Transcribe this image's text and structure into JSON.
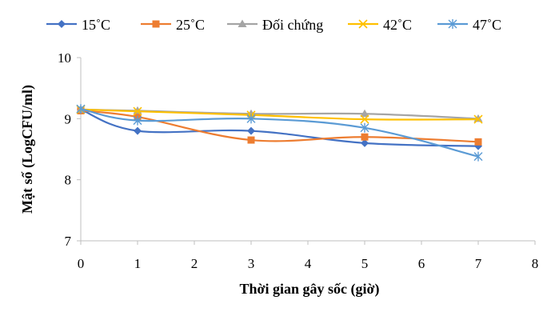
{
  "chart_data": {
    "type": "line",
    "title": "",
    "xlabel": "Thời gian gây sốc (giờ)",
    "ylabel": "Mật số (LogCFU/ml)",
    "xlim": [
      0,
      8
    ],
    "ylim": [
      7,
      10
    ],
    "xticks": [
      "0",
      "1",
      "2",
      "3",
      "4",
      "5",
      "6",
      "7",
      "8"
    ],
    "yticks": [
      "7",
      "8",
      "9",
      "10"
    ],
    "grid": false,
    "legend_position": "top",
    "x": [
      0,
      1,
      3,
      5,
      7
    ],
    "series": [
      {
        "name": "15˚C",
        "color": "#4472C4",
        "marker": "diamond",
        "values": [
          9.15,
          8.8,
          8.8,
          8.6,
          8.55
        ]
      },
      {
        "name": "25˚C",
        "color": "#ED7D31",
        "marker": "square",
        "values": [
          9.13,
          9.03,
          8.65,
          8.7,
          8.62
        ]
      },
      {
        "name": "Đối chứng",
        "color": "#A5A5A5",
        "marker": "triangle",
        "values": [
          9.15,
          9.13,
          9.08,
          9.08,
          9.0
        ]
      },
      {
        "name": "42˚C",
        "color": "#FFC000",
        "marker": "x",
        "values": [
          9.15,
          9.12,
          9.06,
          8.99,
          8.99
        ]
      },
      {
        "name": "47˚C",
        "color": "#5B9BD5",
        "marker": "asterisk",
        "values": [
          9.16,
          8.97,
          9.0,
          8.85,
          8.38
        ]
      }
    ]
  }
}
